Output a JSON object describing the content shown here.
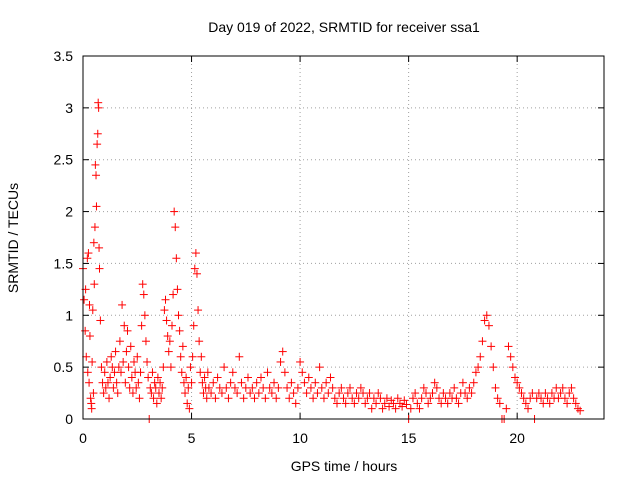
{
  "chart_data": {
    "type": "scatter",
    "title": "Day 019 of 2022, SRMTID for receiver ssa1",
    "xlabel": "GPS time / hours",
    "ylabel": "SRMTID / TECUs",
    "xlim": [
      0,
      24
    ],
    "ylim": [
      0,
      3.5
    ],
    "xticks": [
      0,
      5,
      10,
      15,
      20
    ],
    "xtick_labels": [
      "0",
      "5",
      "10",
      "15",
      "20"
    ],
    "yticks": [
      0,
      0.5,
      1,
      1.5,
      2,
      2.5,
      3,
      3.5
    ],
    "ytick_labels": [
      "0",
      "0.5",
      "1",
      "1.5",
      "2",
      "2.5",
      "3",
      "3.5"
    ],
    "grid": true,
    "marker": "+",
    "marker_color": "#ff0000",
    "series": [
      {
        "name": "ssa1",
        "points": [
          [
            0.0,
            1.45
          ],
          [
            0.05,
            1.15
          ],
          [
            0.1,
            0.85
          ],
          [
            0.12,
            1.25
          ],
          [
            0.15,
            0.6
          ],
          [
            0.2,
            1.55
          ],
          [
            0.22,
            0.45
          ],
          [
            0.25,
            1.6
          ],
          [
            0.28,
            0.35
          ],
          [
            0.3,
            1.1
          ],
          [
            0.32,
            0.8
          ],
          [
            0.35,
            0.2
          ],
          [
            0.38,
            0.15
          ],
          [
            0.4,
            0.1
          ],
          [
            0.42,
            0.55
          ],
          [
            0.45,
            1.05
          ],
          [
            0.48,
            0.25
          ],
          [
            0.5,
            1.7
          ],
          [
            0.52,
            1.3
          ],
          [
            0.55,
            1.85
          ],
          [
            0.57,
            2.45
          ],
          [
            0.6,
            2.35
          ],
          [
            0.62,
            2.05
          ],
          [
            0.65,
            2.65
          ],
          [
            0.68,
            2.75
          ],
          [
            0.7,
            3.05
          ],
          [
            0.72,
            3.0
          ],
          [
            0.74,
            1.65
          ],
          [
            0.76,
            1.45
          ],
          [
            0.8,
            0.95
          ],
          [
            0.85,
            0.5
          ],
          [
            0.9,
            0.35
          ],
          [
            0.95,
            0.25
          ],
          [
            1.0,
            0.45
          ],
          [
            1.05,
            0.3
          ],
          [
            1.1,
            0.55
          ],
          [
            1.15,
            0.35
          ],
          [
            1.2,
            0.2
          ],
          [
            1.25,
            0.4
          ],
          [
            1.3,
            0.6
          ],
          [
            1.35,
            0.5
          ],
          [
            1.4,
            0.3
          ],
          [
            1.45,
            0.45
          ],
          [
            1.5,
            0.65
          ],
          [
            1.55,
            0.35
          ],
          [
            1.6,
            0.25
          ],
          [
            1.65,
            0.5
          ],
          [
            1.7,
            0.75
          ],
          [
            1.75,
            0.45
          ],
          [
            1.8,
            1.1
          ],
          [
            1.85,
            0.55
          ],
          [
            1.9,
            0.9
          ],
          [
            1.95,
            0.35
          ],
          [
            2.0,
            0.65
          ],
          [
            2.05,
            0.85
          ],
          [
            2.1,
            0.5
          ],
          [
            2.15,
            0.3
          ],
          [
            2.2,
            0.7
          ],
          [
            2.25,
            0.4
          ],
          [
            2.3,
            0.25
          ],
          [
            2.35,
            0.55
          ],
          [
            2.4,
            0.45
          ],
          [
            2.45,
            0.3
          ],
          [
            2.5,
            0.6
          ],
          [
            2.55,
            0.35
          ],
          [
            2.6,
            0.2
          ],
          [
            2.65,
            0.45
          ],
          [
            2.7,
            0.9
          ],
          [
            2.75,
            1.3
          ],
          [
            2.8,
            1.2
          ],
          [
            2.85,
            1.0
          ],
          [
            2.9,
            0.75
          ],
          [
            2.95,
            0.55
          ],
          [
            3.0,
            0.4
          ],
          [
            3.05,
            0.0
          ],
          [
            3.1,
            0.3
          ],
          [
            3.15,
            0.25
          ],
          [
            3.2,
            0.45
          ],
          [
            3.25,
            0.2
          ],
          [
            3.3,
            0.35
          ],
          [
            3.35,
            0.3
          ],
          [
            3.4,
            0.15
          ],
          [
            3.45,
            0.4
          ],
          [
            3.5,
            0.25
          ],
          [
            3.55,
            0.35
          ],
          [
            3.6,
            0.2
          ],
          [
            3.65,
            0.3
          ],
          [
            3.7,
            0.5
          ],
          [
            3.75,
            1.05
          ],
          [
            3.8,
            1.15
          ],
          [
            3.85,
            0.95
          ],
          [
            3.9,
            0.8
          ],
          [
            3.95,
            0.65
          ],
          [
            4.0,
            0.75
          ],
          [
            4.05,
            0.5
          ],
          [
            4.1,
            0.9
          ],
          [
            4.15,
            1.2
          ],
          [
            4.2,
            2.0
          ],
          [
            4.25,
            1.85
          ],
          [
            4.3,
            1.55
          ],
          [
            4.35,
            1.25
          ],
          [
            4.4,
            1.0
          ],
          [
            4.45,
            0.85
          ],
          [
            4.5,
            0.6
          ],
          [
            4.55,
            0.45
          ],
          [
            4.6,
            0.7
          ],
          [
            4.65,
            0.35
          ],
          [
            4.7,
            0.25
          ],
          [
            4.75,
            0.4
          ],
          [
            4.8,
            0.15
          ],
          [
            4.85,
            0.3
          ],
          [
            4.9,
            0.1
          ],
          [
            4.95,
            0.5
          ],
          [
            5.0,
            0.35
          ],
          [
            5.05,
            0.6
          ],
          [
            5.1,
            0.9
          ],
          [
            5.15,
            1.45
          ],
          [
            5.2,
            1.6
          ],
          [
            5.25,
            1.4
          ],
          [
            5.3,
            1.05
          ],
          [
            5.35,
            0.75
          ],
          [
            5.4,
            0.45
          ],
          [
            5.45,
            0.6
          ],
          [
            5.5,
            0.35
          ],
          [
            5.55,
            0.25
          ],
          [
            5.6,
            0.4
          ],
          [
            5.65,
            0.3
          ],
          [
            5.7,
            0.2
          ],
          [
            5.75,
            0.45
          ],
          [
            5.8,
            0.3
          ],
          [
            5.9,
            0.25
          ],
          [
            6.0,
            0.35
          ],
          [
            6.1,
            0.2
          ],
          [
            6.2,
            0.4
          ],
          [
            6.3,
            0.3
          ],
          [
            6.4,
            0.25
          ],
          [
            6.5,
            0.5
          ],
          [
            6.6,
            0.3
          ],
          [
            6.7,
            0.2
          ],
          [
            6.8,
            0.35
          ],
          [
            6.9,
            0.45
          ],
          [
            7.0,
            0.3
          ],
          [
            7.1,
            0.25
          ],
          [
            7.2,
            0.6
          ],
          [
            7.3,
            0.35
          ],
          [
            7.4,
            0.2
          ],
          [
            7.5,
            0.3
          ],
          [
            7.6,
            0.4
          ],
          [
            7.7,
            0.25
          ],
          [
            7.8,
            0.3
          ],
          [
            7.9,
            0.2
          ],
          [
            8.0,
            0.35
          ],
          [
            8.1,
            0.25
          ],
          [
            8.2,
            0.4
          ],
          [
            8.3,
            0.3
          ],
          [
            8.4,
            0.2
          ],
          [
            8.5,
            0.45
          ],
          [
            8.6,
            0.3
          ],
          [
            8.7,
            0.25
          ],
          [
            8.8,
            0.35
          ],
          [
            8.9,
            0.2
          ],
          [
            9.0,
            0.3
          ],
          [
            9.1,
            0.55
          ],
          [
            9.2,
            0.65
          ],
          [
            9.3,
            0.45
          ],
          [
            9.4,
            0.3
          ],
          [
            9.5,
            0.2
          ],
          [
            9.6,
            0.35
          ],
          [
            9.7,
            0.25
          ],
          [
            9.8,
            0.15
          ],
          [
            9.9,
            0.3
          ],
          [
            10.0,
            0.55
          ],
          [
            10.1,
            0.45
          ],
          [
            10.2,
            0.35
          ],
          [
            10.3,
            0.25
          ],
          [
            10.4,
            0.4
          ],
          [
            10.5,
            0.3
          ],
          [
            10.6,
            0.2
          ],
          [
            10.7,
            0.35
          ],
          [
            10.8,
            0.25
          ],
          [
            10.9,
            0.5
          ],
          [
            11.0,
            0.3
          ],
          [
            11.1,
            0.2
          ],
          [
            11.2,
            0.35
          ],
          [
            11.3,
            0.25
          ],
          [
            11.4,
            0.4
          ],
          [
            11.5,
            0.3
          ],
          [
            11.6,
            0.2
          ],
          [
            11.7,
            0.15
          ],
          [
            11.8,
            0.25
          ],
          [
            11.9,
            0.3
          ],
          [
            12.0,
            0.2
          ],
          [
            12.1,
            0.15
          ],
          [
            12.2,
            0.25
          ],
          [
            12.3,
            0.3
          ],
          [
            12.4,
            0.2
          ],
          [
            12.5,
            0.15
          ],
          [
            12.6,
            0.25
          ],
          [
            12.7,
            0.2
          ],
          [
            12.8,
            0.3
          ],
          [
            12.9,
            0.25
          ],
          [
            13.0,
            0.15
          ],
          [
            13.1,
            0.2
          ],
          [
            13.2,
            0.25
          ],
          [
            13.3,
            0.1
          ],
          [
            13.4,
            0.2
          ],
          [
            13.5,
            0.15
          ],
          [
            13.6,
            0.25
          ],
          [
            13.7,
            0.2
          ],
          [
            13.8,
            0.1
          ],
          [
            13.9,
            0.15
          ],
          [
            14.0,
            0.2
          ],
          [
            14.1,
            0.12
          ],
          [
            14.2,
            0.18
          ],
          [
            14.3,
            0.15
          ],
          [
            14.4,
            0.1
          ],
          [
            14.5,
            0.2
          ],
          [
            14.6,
            0.15
          ],
          [
            14.7,
            0.12
          ],
          [
            14.8,
            0.18
          ],
          [
            14.9,
            0.14
          ],
          [
            15.0,
            0.0
          ],
          [
            15.1,
            0.1
          ],
          [
            15.2,
            0.2
          ],
          [
            15.3,
            0.25
          ],
          [
            15.4,
            0.15
          ],
          [
            15.5,
            0.1
          ],
          [
            15.6,
            0.2
          ],
          [
            15.7,
            0.3
          ],
          [
            15.8,
            0.25
          ],
          [
            15.9,
            0.15
          ],
          [
            16.0,
            0.2
          ],
          [
            16.1,
            0.25
          ],
          [
            16.2,
            0.35
          ],
          [
            16.3,
            0.3
          ],
          [
            16.4,
            0.2
          ],
          [
            16.5,
            0.15
          ],
          [
            16.6,
            0.25
          ],
          [
            16.7,
            0.2
          ],
          [
            16.8,
            0.15
          ],
          [
            16.9,
            0.25
          ],
          [
            17.0,
            0.2
          ],
          [
            17.1,
            0.3
          ],
          [
            17.2,
            0.2
          ],
          [
            17.3,
            0.15
          ],
          [
            17.4,
            0.25
          ],
          [
            17.5,
            0.35
          ],
          [
            17.6,
            0.25
          ],
          [
            17.7,
            0.2
          ],
          [
            17.8,
            0.3
          ],
          [
            17.9,
            0.25
          ],
          [
            18.0,
            0.35
          ],
          [
            18.1,
            0.45
          ],
          [
            18.2,
            0.5
          ],
          [
            18.3,
            0.6
          ],
          [
            18.4,
            0.75
          ],
          [
            18.5,
            0.95
          ],
          [
            18.6,
            1.0
          ],
          [
            18.7,
            0.9
          ],
          [
            18.8,
            0.7
          ],
          [
            18.9,
            0.5
          ],
          [
            19.0,
            0.3
          ],
          [
            19.1,
            0.2
          ],
          [
            19.2,
            0.15
          ],
          [
            19.3,
            0.0
          ],
          [
            19.4,
            0.0
          ],
          [
            19.5,
            0.1
          ],
          [
            19.6,
            0.7
          ],
          [
            19.7,
            0.6
          ],
          [
            19.8,
            0.5
          ],
          [
            19.9,
            0.4
          ],
          [
            20.0,
            0.35
          ],
          [
            20.1,
            0.3
          ],
          [
            20.2,
            0.25
          ],
          [
            20.3,
            0.2
          ],
          [
            20.4,
            0.15
          ],
          [
            20.5,
            0.1
          ],
          [
            20.6,
            0.2
          ],
          [
            20.7,
            0.25
          ],
          [
            20.8,
            0.0
          ],
          [
            20.9,
            0.2
          ],
          [
            21.0,
            0.25
          ],
          [
            21.1,
            0.2
          ],
          [
            21.2,
            0.15
          ],
          [
            21.3,
            0.25
          ],
          [
            21.4,
            0.2
          ],
          [
            21.5,
            0.15
          ],
          [
            21.6,
            0.25
          ],
          [
            21.7,
            0.2
          ],
          [
            21.8,
            0.3
          ],
          [
            21.9,
            0.2
          ],
          [
            22.0,
            0.25
          ],
          [
            22.1,
            0.3
          ],
          [
            22.2,
            0.2
          ],
          [
            22.3,
            0.15
          ],
          [
            22.4,
            0.25
          ],
          [
            22.5,
            0.3
          ],
          [
            22.6,
            0.2
          ],
          [
            22.7,
            0.15
          ],
          [
            22.8,
            0.1
          ],
          [
            22.9,
            0.08
          ]
        ]
      }
    ]
  }
}
